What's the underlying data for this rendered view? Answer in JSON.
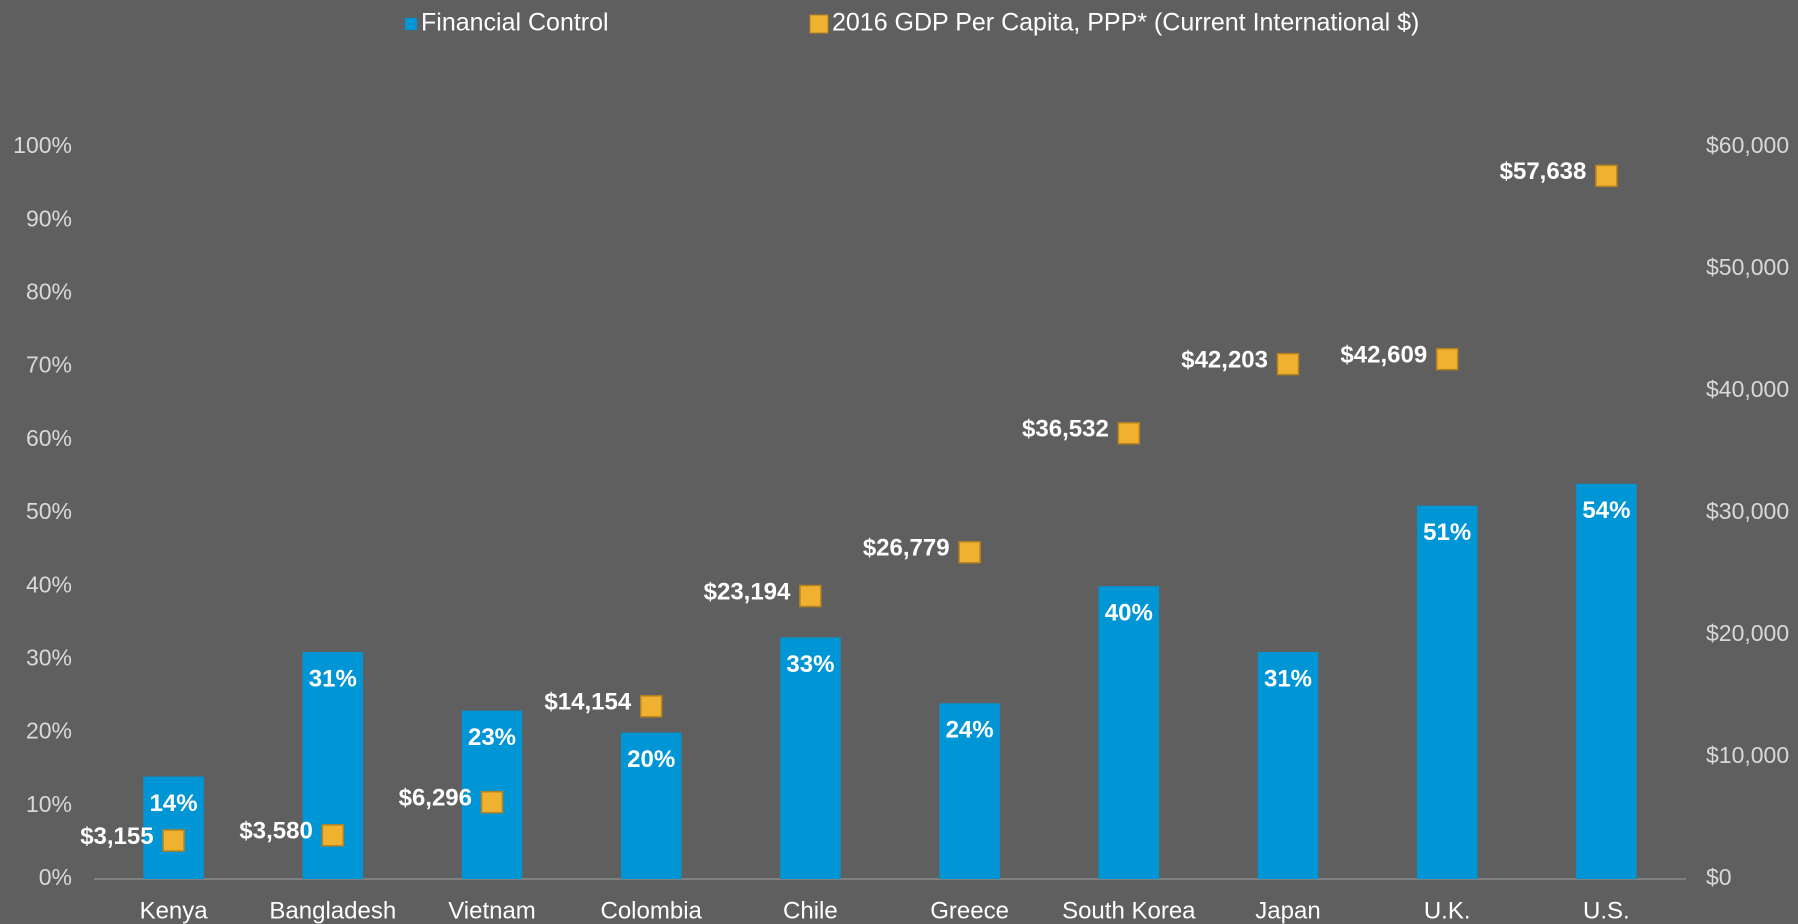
{
  "chart_data": {
    "type": "bar",
    "categories": [
      "Kenya",
      "Bangladesh",
      "Vietnam",
      "Colombia",
      "Chile",
      "Greece",
      "South Korea",
      "Japan",
      "U.K.",
      "U.S."
    ],
    "series": [
      {
        "name": "Financial Control",
        "type": "bar",
        "color": "#0096d6",
        "values": [
          14,
          31,
          23,
          20,
          33,
          24,
          40,
          31,
          51,
          54
        ],
        "value_labels": [
          "14%",
          "31%",
          "23%",
          "20%",
          "33%",
          "24%",
          "40%",
          "31%",
          "51%",
          "54%"
        ]
      },
      {
        "name": "2016 GDP Per Capita, PPP* (Current International $)",
        "type": "scatter",
        "axis": "y2",
        "color": "#f0b030",
        "values": [
          3155,
          3580,
          6296,
          14154,
          23194,
          26779,
          36532,
          42203,
          42609,
          57638
        ],
        "value_labels": [
          "$3,155",
          "$3,580",
          "$6,296",
          "$14,154",
          "$23,194",
          "$26,779",
          "$36,532",
          "$42,203",
          "$42,609",
          "$57,638"
        ]
      }
    ],
    "ylim": [
      0,
      100
    ],
    "yticks": [
      {
        "value": 0,
        "label": "0%"
      },
      {
        "value": 10,
        "label": "10%"
      },
      {
        "value": 20,
        "label": "20%"
      },
      {
        "value": 30,
        "label": "30%"
      },
      {
        "value": 40,
        "label": "40%"
      },
      {
        "value": 50,
        "label": "50%"
      },
      {
        "value": 60,
        "label": "60%"
      },
      {
        "value": 70,
        "label": "70%"
      },
      {
        "value": 80,
        "label": "80%"
      },
      {
        "value": 90,
        "label": "90%"
      },
      {
        "value": 100,
        "label": "100%"
      }
    ],
    "y2lim": [
      0,
      60000
    ],
    "y2ticks": [
      {
        "value": 0,
        "label": "$0"
      },
      {
        "value": 10000,
        "label": "$10,000"
      },
      {
        "value": 20000,
        "label": "$20,000"
      },
      {
        "value": 30000,
        "label": "$30,000"
      },
      {
        "value": 40000,
        "label": "$40,000"
      },
      {
        "value": 50000,
        "label": "$50,000"
      },
      {
        "value": 60000,
        "label": "$60,000"
      }
    ],
    "legend": "top",
    "grid": false
  }
}
